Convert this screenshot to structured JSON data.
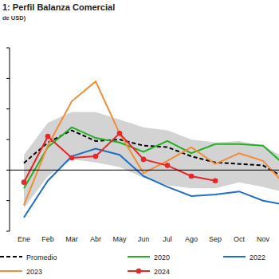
{
  "chart_data": {
    "type": "line",
    "title": "1: Perfil Balanza Comercial",
    "subtitle": "de USD)",
    "categories": [
      "Ene",
      "Feb",
      "Mar",
      "Abr",
      "May",
      "Jun",
      "Jul",
      "Ago",
      "Sep",
      "Oct",
      "Nov",
      null
    ],
    "ylim": [
      -2,
      4
    ],
    "yticks": [
      -2,
      -1,
      0,
      1,
      2,
      3,
      4
    ],
    "tick_labels": "x",
    "grid": false,
    "legend": "bottom",
    "band": {
      "color": "#d3d3d3",
      "lower": [
        -1.25,
        -0.2,
        0.35,
        0.25,
        0.1,
        -0.25,
        -0.5,
        -0.6,
        -0.6,
        -0.4,
        -0.55,
        -0.75
      ],
      "upper": [
        0.5,
        1.55,
        1.9,
        1.9,
        1.65,
        1.4,
        1.3,
        1.0,
        0.9,
        0.95,
        0.8,
        0.35
      ]
    },
    "series": [
      {
        "name": "Promedio",
        "color": "#000000",
        "line_style": "dashed",
        "values": [
          0.23,
          0.9,
          1.3,
          0.95,
          1.0,
          0.8,
          0.75,
          0.45,
          0.25,
          0.2,
          0.15,
          -0.3
        ]
      },
      {
        "name": "2020",
        "color": "#22b022",
        "line_style": "solid",
        "values": [
          -0.6,
          0.75,
          1.4,
          1.05,
          0.9,
          0.6,
          0.95,
          0.55,
          0.85,
          0.85,
          0.8,
          0.1
        ]
      },
      {
        "name": "2022",
        "color": "#1f6fc5",
        "line_style": "solid",
        "values": [
          -1.55,
          -0.35,
          0.45,
          0.7,
          0.5,
          -0.2,
          -0.55,
          -0.85,
          -0.8,
          -0.7,
          -1.0,
          -1.15
        ]
      },
      {
        "name": "2023",
        "color": "#f28c38",
        "line_style": "solid",
        "values": [
          -1.15,
          0.8,
          2.25,
          2.9,
          1.2,
          -0.1,
          0.3,
          0.75,
          0.2,
          0.55,
          0.3,
          -0.55
        ]
      },
      {
        "name": "2024",
        "color": "#e8262a",
        "line_style": "solid",
        "marker": "circle",
        "values": [
          -0.4,
          1.1,
          0.4,
          0.45,
          1.2,
          0.35,
          0.15,
          -0.2,
          -0.35,
          null,
          null,
          null
        ]
      }
    ]
  }
}
